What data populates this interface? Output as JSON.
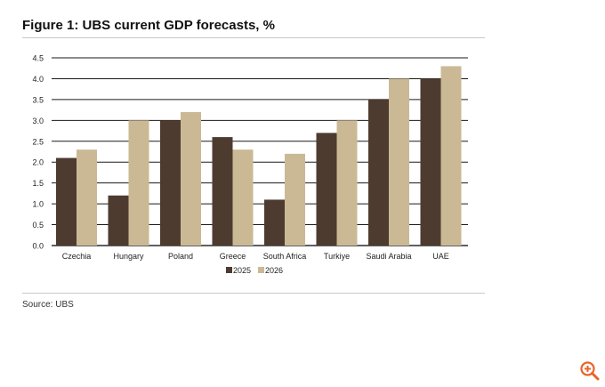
{
  "figure": {
    "title": "Figure 1: UBS current GDP forecasts, %",
    "source": "Source: UBS"
  },
  "chart_data": {
    "type": "bar",
    "title": "Figure 1: UBS current GDP forecasts, %",
    "xlabel": "",
    "ylabel": "",
    "categories": [
      "Czechia",
      "Hungary",
      "Poland",
      "Greece",
      "South Africa",
      "Turkiye",
      "Saudi Arabia",
      "UAE"
    ],
    "series": [
      {
        "name": "2025",
        "values": [
          2.1,
          1.2,
          3.0,
          2.6,
          1.1,
          2.7,
          3.5,
          4.0
        ],
        "color": "#4e3b30"
      },
      {
        "name": "2026",
        "values": [
          2.3,
          3.0,
          3.2,
          2.3,
          2.2,
          3.0,
          4.0,
          4.3
        ],
        "color": "#cbb996"
      }
    ],
    "ylim": [
      0,
      4.5
    ],
    "yticks": [
      0.0,
      0.5,
      1.0,
      1.5,
      2.0,
      2.5,
      3.0,
      3.5,
      4.0,
      4.5
    ],
    "ytick_labels": [
      "0.0",
      "0.5",
      "1.0",
      "1.5",
      "2.0",
      "2.5",
      "3.0",
      "3.5",
      "4.0",
      "4.5"
    ],
    "grid": "horizontal",
    "legend": "bottom-center"
  },
  "ui": {
    "zoom_icon": "zoom-in-icon",
    "accent": "#e8632a"
  }
}
